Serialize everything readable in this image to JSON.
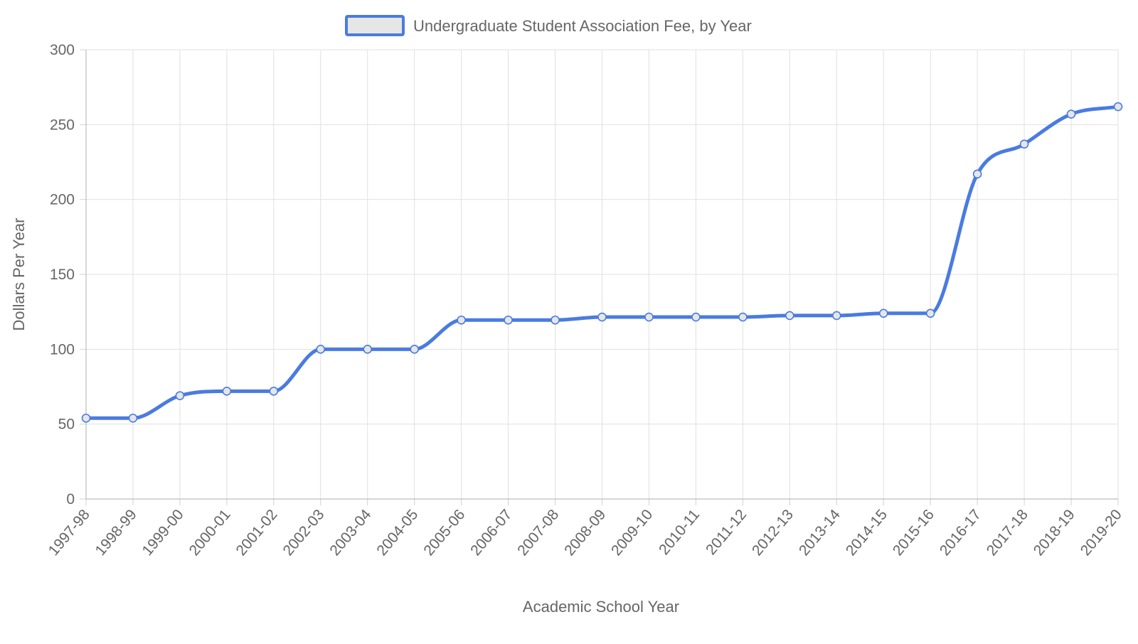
{
  "chart_data": {
    "type": "line",
    "title": "",
    "legend_position": "top",
    "xlabel": "Academic School Year",
    "ylabel": "Dollars Per Year",
    "ylim": [
      0,
      300
    ],
    "y_ticks": [
      0,
      50,
      100,
      150,
      200,
      250,
      300
    ],
    "grid": true,
    "categories": [
      "1997-98",
      "1998-99",
      "1999-00",
      "2000-01",
      "2001-02",
      "2002-03",
      "2003-04",
      "2004-05",
      "2005-06",
      "2006-07",
      "2007-08",
      "2008-09",
      "2009-10",
      "2010-11",
      "2011-12",
      "2012-13",
      "2013-14",
      "2014-15",
      "2015-16",
      "2016-17",
      "2017-18",
      "2018-19",
      "2019-20"
    ],
    "series": [
      {
        "name": "Undergraduate Student Association Fee, by Year",
        "color": "#4a7be0",
        "legend_fill": "#e6e6e6",
        "values": [
          54,
          54,
          69,
          72,
          72,
          100,
          100,
          100,
          119.5,
          119.5,
          119.5,
          121.5,
          121.5,
          121.5,
          121.5,
          122.5,
          122.5,
          124,
          124,
          217,
          237,
          257,
          262
        ]
      }
    ]
  }
}
